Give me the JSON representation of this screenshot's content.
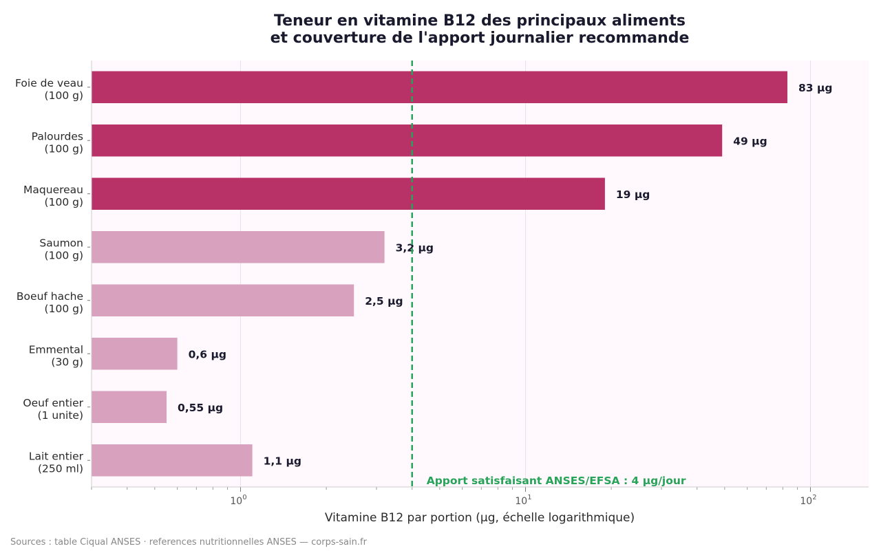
{
  "chart_data": {
    "type": "bar",
    "orientation": "horizontal",
    "title_lines": [
      "Teneur en vitamine B12 des principaux aliments",
      "et couverture de l'apport journalier recommande"
    ],
    "xlabel": "Vitamine B12 par portion (µg, échelle logarithmique)",
    "x_scale": "log",
    "xlim": [
      0.3,
      160
    ],
    "x_ticks": [
      {
        "value": 1,
        "base": "10",
        "exp": "0"
      },
      {
        "value": 10,
        "base": "10",
        "exp": "1"
      },
      {
        "value": 100,
        "base": "10",
        "exp": "2"
      }
    ],
    "grid": "vertical",
    "categories": [
      [
        "Foie de veau",
        "(100 g)"
      ],
      [
        "Palourdes",
        "(100 g)"
      ],
      [
        "Maquereau",
        "(100 g)"
      ],
      [
        "Saumon",
        "(100 g)"
      ],
      [
        "Boeuf hache",
        "(100 g)"
      ],
      [
        "Emmental",
        "(30 g)"
      ],
      [
        "Oeuf entier",
        "(1 unite)"
      ],
      [
        "Lait entier",
        "(250 ml)"
      ]
    ],
    "values": [
      83,
      49,
      19,
      3.2,
      2.5,
      0.6,
      0.55,
      1.1
    ],
    "value_labels": [
      "83 µg",
      "49 µg",
      "19 µg",
      "3,2 µg",
      "2,5 µg",
      "0,6 µg",
      "0,55 µg",
      "1,1 µg"
    ],
    "reference_line": {
      "value": 4,
      "label": "Apport satisfaisant ANSES/EFSA : 4 µg/jour",
      "color": "#27a35a"
    },
    "colors": {
      "above_reference": "#b83268",
      "below_reference": "#d8a2bf",
      "plot_background": "#fff8fc",
      "gridline": "#ecdfe9"
    }
  },
  "source_text": "Sources : table Ciqual ANSES · references nutritionnelles ANSES — corps-sain.fr"
}
